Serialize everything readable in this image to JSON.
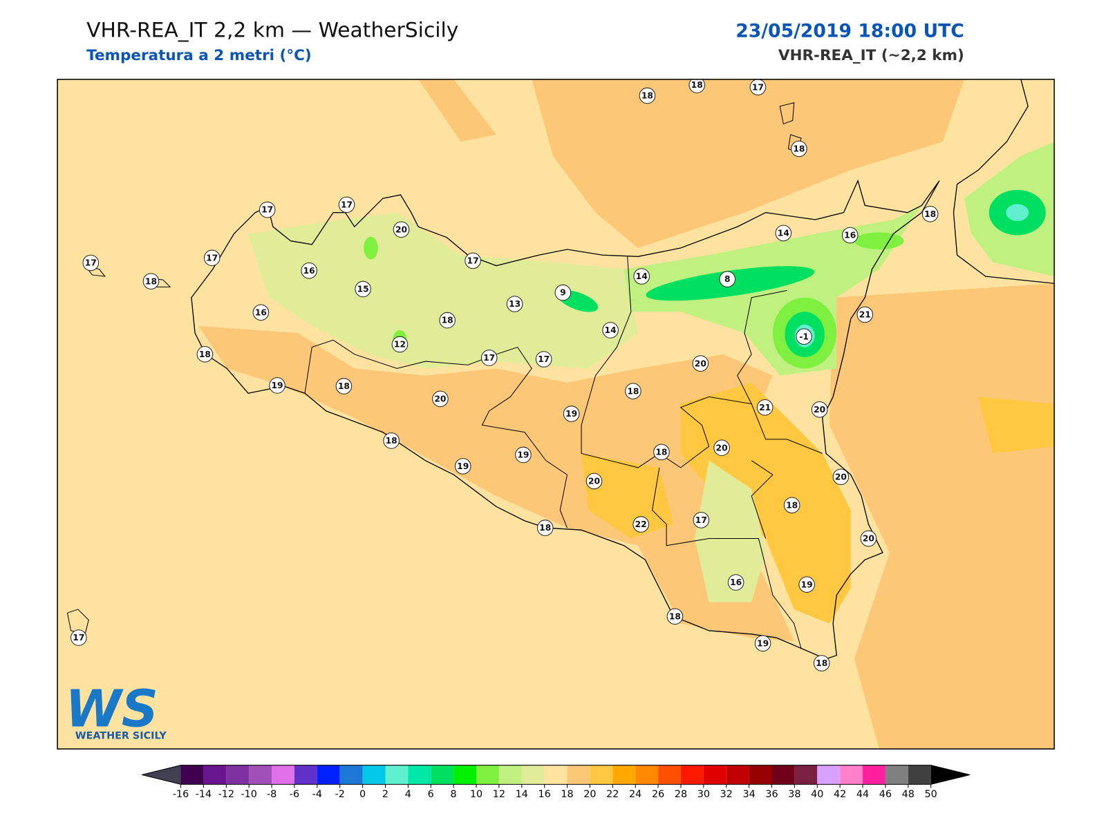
{
  "header": {
    "title": "VHR-REA_IT 2,2 km — WeatherSicily",
    "subtitle": "Temperatura a 2 metri (°C)",
    "datetime": "23/05/2019 18:00 UTC",
    "model": "VHR-REA_IT (~2,2 km)"
  },
  "stations": [
    18,
    18,
    17,
    18,
    17,
    17,
    20,
    17,
    17,
    18,
    16,
    17,
    15,
    16,
    13,
    9,
    18,
    12,
    14,
    14,
    8,
    14,
    16,
    18,
    21,
    -1,
    18,
    19,
    18,
    17,
    17,
    20,
    20,
    18,
    19,
    21,
    20,
    18,
    19,
    19,
    18,
    20,
    20,
    20,
    18,
    18,
    22,
    17,
    20,
    16,
    19,
    18,
    19,
    18,
    17
  ],
  "colorbar": {
    "ticks": [
      -16,
      -14,
      -12,
      -10,
      -8,
      -6,
      -4,
      -2,
      0,
      2,
      4,
      6,
      8,
      10,
      12,
      14,
      16,
      18,
      20,
      22,
      24,
      26,
      28,
      30,
      32,
      34,
      36,
      38,
      40,
      42,
      44,
      46,
      48,
      50
    ],
    "colors": [
      "#400050",
      "#6a1590",
      "#7f30a0",
      "#a050b8",
      "#e070e8",
      "#6030c8",
      "#0020ff",
      "#1e78d8",
      "#00c8e6",
      "#60f0d0",
      "#00e8a8",
      "#00e060",
      "#00f000",
      "#80f040",
      "#c0f080",
      "#e0ec98",
      "#ffe4a0",
      "#fcc878",
      "#ffc840",
      "#ffa800",
      "#ff8800",
      "#ff5000",
      "#ff1800",
      "#e00000",
      "#c00000",
      "#960000",
      "#700018",
      "#7a2040",
      "#d8a0ff",
      "#ff80c8",
      "#ff20a0",
      "#808080",
      "#404040"
    ],
    "under_color": "#404050",
    "over_color": "#000000"
  },
  "logo": {
    "mark": "WS",
    "name": "WEATHER SICILY"
  }
}
